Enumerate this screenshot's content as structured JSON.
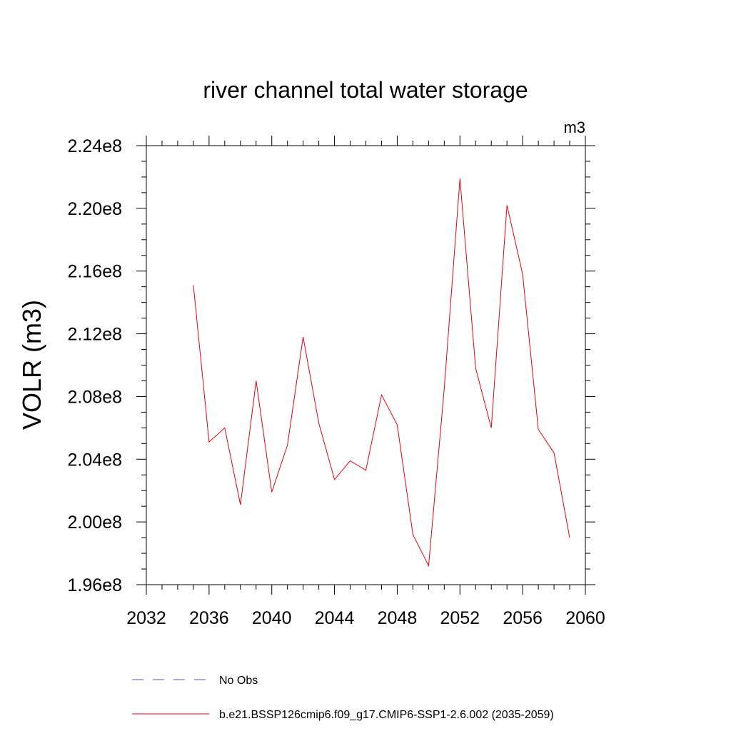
{
  "chart_data": {
    "type": "line",
    "title": "river channel total water storage",
    "units": "m3",
    "ylabel": "VOLR  (m3)",
    "xlabel": "",
    "xlim": [
      2032,
      2060
    ],
    "ylim": [
      196000000.0,
      224000000.0
    ],
    "x_ticks": [
      2032,
      2036,
      2040,
      2044,
      2048,
      2052,
      2056,
      2060
    ],
    "x_tick_labels": [
      "2032",
      "2036",
      "2040",
      "2044",
      "2048",
      "2052",
      "2056",
      "2060"
    ],
    "y_ticks": [
      196000000.0,
      200000000.0,
      204000000.0,
      208000000.0,
      212000000.0,
      216000000.0,
      220000000.0,
      224000000.0
    ],
    "y_tick_labels": [
      "1.96e8",
      "2.00e8",
      "2.04e8",
      "2.08e8",
      "2.12e8",
      "2.16e8",
      "2.20e8",
      "2.24e8"
    ],
    "grid": false,
    "legend_position": "bottom",
    "series": [
      {
        "name": "b.e21.BSSP126cmip6.f09_g17.CMIP6-SSP1-2.6.002 (2035-2059)",
        "color": "#e8000b",
        "style": "solid",
        "x": [
          2035,
          2036,
          2037,
          2038,
          2039,
          2040,
          2041,
          2042,
          2043,
          2044,
          2045,
          2046,
          2047,
          2048,
          2049,
          2050,
          2051,
          2052,
          2053,
          2054,
          2055,
          2056,
          2057,
          2058,
          2059
        ],
        "values": [
          215100000.0,
          205100000.0,
          206000000.0,
          201100000.0,
          209000000.0,
          201900000.0,
          204900000.0,
          211800000.0,
          206300000.0,
          202700000.0,
          203900000.0,
          203300000.0,
          208100000.0,
          206200000.0,
          199200000.0,
          197200000.0,
          208500000.0,
          221900000.0,
          209800000.0,
          206000000.0,
          220200000.0,
          215800000.0,
          205900000.0,
          204400000.0,
          199000000.0
        ]
      }
    ],
    "legend": [
      {
        "label": "No Obs",
        "color": "#5a4fcf",
        "style": "dashed"
      },
      {
        "label": "b.e21.BSSP126cmip6.f09_g17.CMIP6-SSP1-2.6.002 (2035-2059)",
        "color": "#e8000b",
        "style": "solid"
      }
    ]
  }
}
